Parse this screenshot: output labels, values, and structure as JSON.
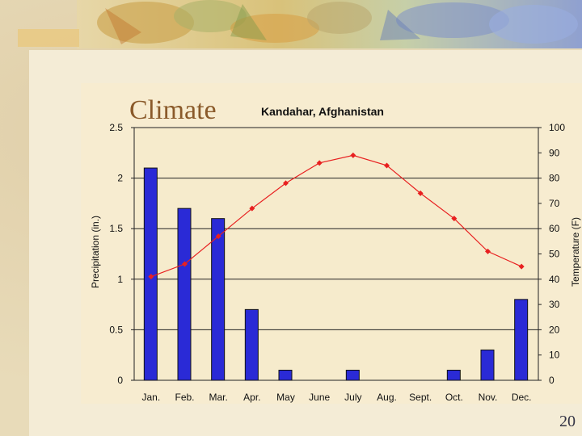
{
  "slide": {
    "page_number": "20"
  },
  "chart_data": {
    "type": "bar+line",
    "title": "Climate",
    "subtitle": "Kandahar, Afghanistan",
    "categories": [
      "Jan.",
      "Feb.",
      "Mar.",
      "Apr.",
      "May",
      "June",
      "July",
      "Aug.",
      "Sept.",
      "Oct.",
      "Nov.",
      "Dec."
    ],
    "ylabel_left": "Precipitation (in.)",
    "ylabel_right": "Temperature (F)",
    "ylim_left": [
      0,
      2.5
    ],
    "ylim_right": [
      0,
      100
    ],
    "yticks_left": [
      "0",
      "0.5",
      "1",
      "1.5",
      "2",
      "2.5"
    ],
    "yticks_right": [
      "0",
      "10",
      "20",
      "30",
      "40",
      "50",
      "60",
      "70",
      "80",
      "90",
      "100"
    ],
    "series": [
      {
        "kind": "bar",
        "axis": "left",
        "color": "#2a2ad6",
        "values": [
          2.1,
          1.7,
          1.6,
          0.7,
          0.1,
          0,
          0.1,
          0,
          0,
          0.1,
          0.3,
          0.8
        ]
      },
      {
        "kind": "line",
        "axis": "right",
        "color": "#e82020",
        "values": [
          41,
          46,
          57,
          68,
          78,
          86,
          89,
          85,
          74,
          64,
          51,
          45
        ]
      }
    ],
    "grid": true,
    "legend": "none"
  }
}
